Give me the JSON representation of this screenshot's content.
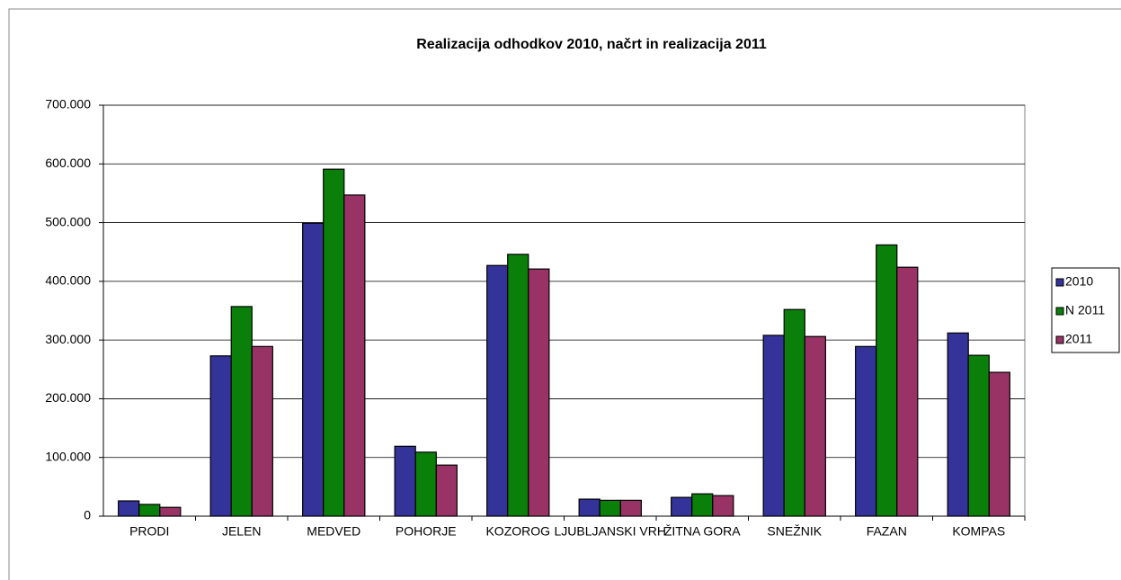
{
  "chart_data": {
    "type": "bar",
    "title": "Realizacija odhodkov 2010, načrt in realizacija 2011",
    "categories": [
      "PRODI",
      "JELEN",
      "MEDVED",
      "POHORJE",
      "KOZOROG",
      "LJUBLJANSKI VRH",
      "ŽITNA GORA",
      "SNEŽNIK",
      "FAZAN",
      "KOMPAS"
    ],
    "series": [
      {
        "name": "2010",
        "color": "#333399",
        "values": [
          26000,
          273000,
          499000,
          119000,
          427000,
          29000,
          32000,
          308000,
          289000,
          312000
        ]
      },
      {
        "name": "N 2011",
        "color": "#0a7f0a",
        "values": [
          20000,
          357000,
          591000,
          109000,
          446000,
          27000,
          38000,
          352000,
          462000,
          274000
        ]
      },
      {
        "name": "2011",
        "color": "#993366",
        "values": [
          15000,
          289000,
          547000,
          87000,
          421000,
          27000,
          35000,
          306000,
          424000,
          245000
        ]
      }
    ],
    "ylim": [
      0,
      700000
    ],
    "yticks": [
      0,
      {
        "value": 100000,
        "label": "100.000"
      },
      {
        "value": 200000,
        "label": "200.000"
      },
      {
        "value": 300000,
        "label": "300.000"
      },
      {
        "value": 400000,
        "label": "400.000"
      },
      {
        "value": 500000,
        "label": "500.000"
      },
      {
        "value": 600000,
        "label": "600.000"
      },
      {
        "value": 700000,
        "label": "700.000"
      }
    ],
    "grid": true,
    "legend": "right"
  }
}
